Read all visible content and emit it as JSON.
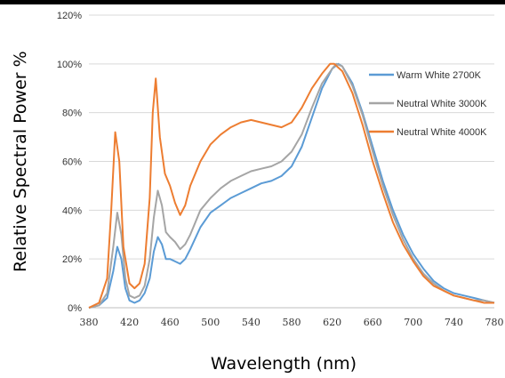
{
  "chart_data": {
    "type": "line",
    "title": "",
    "xlabel": "Wavelength (nm)",
    "ylabel": "Relative Spectral Power %",
    "xlim": [
      380,
      780
    ],
    "ylim": [
      0,
      120
    ],
    "x_ticks": [
      "380",
      "420",
      "460",
      "500",
      "540",
      "580",
      "620",
      "660",
      "700",
      "740",
      "780"
    ],
    "y_ticks": [
      "0%",
      "20%",
      "40%",
      "60%",
      "80%",
      "100%",
      "120%"
    ],
    "grid": "horizontal",
    "legend_position": "top-right",
    "series": [
      {
        "name": "Warm White 2700K",
        "color": "#5b9bd5",
        "points": [
          [
            380,
            0
          ],
          [
            390,
            1
          ],
          [
            398,
            4
          ],
          [
            404,
            15
          ],
          [
            408,
            25
          ],
          [
            412,
            20
          ],
          [
            416,
            8
          ],
          [
            420,
            3
          ],
          [
            425,
            2
          ],
          [
            430,
            3
          ],
          [
            435,
            6
          ],
          [
            440,
            12
          ],
          [
            444,
            23
          ],
          [
            448,
            29
          ],
          [
            452,
            26
          ],
          [
            456,
            20
          ],
          [
            460,
            20
          ],
          [
            465,
            19
          ],
          [
            470,
            18
          ],
          [
            475,
            20
          ],
          [
            480,
            24
          ],
          [
            490,
            33
          ],
          [
            500,
            39
          ],
          [
            510,
            42
          ],
          [
            520,
            45
          ],
          [
            530,
            47
          ],
          [
            540,
            49
          ],
          [
            550,
            51
          ],
          [
            560,
            52
          ],
          [
            570,
            54
          ],
          [
            580,
            58
          ],
          [
            590,
            66
          ],
          [
            600,
            78
          ],
          [
            610,
            90
          ],
          [
            620,
            98
          ],
          [
            626,
            100
          ],
          [
            630,
            99
          ],
          [
            640,
            92
          ],
          [
            650,
            80
          ],
          [
            660,
            66
          ],
          [
            670,
            52
          ],
          [
            680,
            40
          ],
          [
            690,
            30
          ],
          [
            700,
            22
          ],
          [
            710,
            16
          ],
          [
            720,
            11
          ],
          [
            730,
            8
          ],
          [
            740,
            6
          ],
          [
            750,
            5
          ],
          [
            760,
            4
          ],
          [
            770,
            3
          ],
          [
            780,
            2
          ]
        ]
      },
      {
        "name": "Neutral White 3000K",
        "color": "#a5a5a5",
        "points": [
          [
            380,
            0
          ],
          [
            390,
            1
          ],
          [
            398,
            6
          ],
          [
            404,
            25
          ],
          [
            408,
            39
          ],
          [
            412,
            30
          ],
          [
            416,
            12
          ],
          [
            420,
            5
          ],
          [
            425,
            4
          ],
          [
            430,
            5
          ],
          [
            435,
            9
          ],
          [
            440,
            20
          ],
          [
            444,
            37
          ],
          [
            448,
            48
          ],
          [
            452,
            42
          ],
          [
            456,
            31
          ],
          [
            460,
            29
          ],
          [
            465,
            27
          ],
          [
            470,
            24
          ],
          [
            475,
            26
          ],
          [
            480,
            30
          ],
          [
            490,
            40
          ],
          [
            500,
            45
          ],
          [
            510,
            49
          ],
          [
            520,
            52
          ],
          [
            530,
            54
          ],
          [
            540,
            56
          ],
          [
            550,
            57
          ],
          [
            560,
            58
          ],
          [
            570,
            60
          ],
          [
            580,
            64
          ],
          [
            590,
            71
          ],
          [
            600,
            82
          ],
          [
            610,
            92
          ],
          [
            620,
            98
          ],
          [
            624,
            100
          ],
          [
            630,
            99
          ],
          [
            640,
            91
          ],
          [
            650,
            79
          ],
          [
            660,
            64
          ],
          [
            670,
            50
          ],
          [
            680,
            38
          ],
          [
            690,
            28
          ],
          [
            700,
            20
          ],
          [
            710,
            14
          ],
          [
            720,
            10
          ],
          [
            730,
            7
          ],
          [
            740,
            5
          ],
          [
            750,
            4
          ],
          [
            760,
            3
          ],
          [
            770,
            3
          ],
          [
            780,
            2
          ]
        ]
      },
      {
        "name": "Neutral White 4000K",
        "color": "#ed7d31",
        "points": [
          [
            380,
            0
          ],
          [
            390,
            2
          ],
          [
            398,
            12
          ],
          [
            402,
            40
          ],
          [
            406,
            72
          ],
          [
            410,
            60
          ],
          [
            414,
            25
          ],
          [
            420,
            10
          ],
          [
            425,
            8
          ],
          [
            430,
            10
          ],
          [
            435,
            18
          ],
          [
            440,
            45
          ],
          [
            443,
            80
          ],
          [
            446,
            94
          ],
          [
            450,
            70
          ],
          [
            455,
            55
          ],
          [
            460,
            50
          ],
          [
            465,
            43
          ],
          [
            470,
            38
          ],
          [
            475,
            42
          ],
          [
            480,
            50
          ],
          [
            490,
            60
          ],
          [
            500,
            67
          ],
          [
            510,
            71
          ],
          [
            520,
            74
          ],
          [
            530,
            76
          ],
          [
            540,
            77
          ],
          [
            550,
            76
          ],
          [
            560,
            75
          ],
          [
            570,
            74
          ],
          [
            580,
            76
          ],
          [
            590,
            82
          ],
          [
            600,
            90
          ],
          [
            610,
            96
          ],
          [
            618,
            100
          ],
          [
            622,
            100
          ],
          [
            630,
            97
          ],
          [
            640,
            88
          ],
          [
            650,
            75
          ],
          [
            660,
            60
          ],
          [
            670,
            47
          ],
          [
            680,
            35
          ],
          [
            690,
            26
          ],
          [
            700,
            19
          ],
          [
            710,
            13
          ],
          [
            720,
            9
          ],
          [
            730,
            7
          ],
          [
            740,
            5
          ],
          [
            750,
            4
          ],
          [
            760,
            3
          ],
          [
            770,
            2
          ],
          [
            780,
            2
          ]
        ]
      }
    ]
  }
}
